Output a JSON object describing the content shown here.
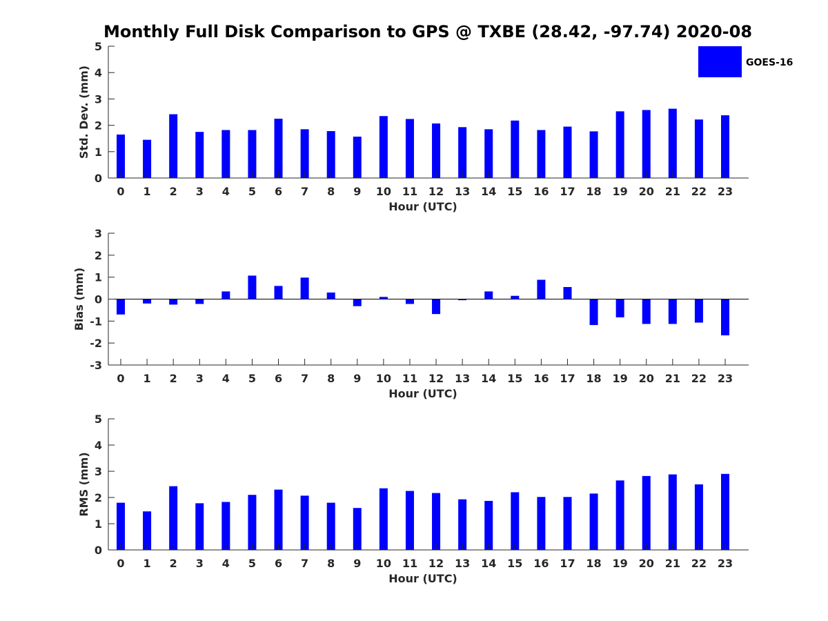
{
  "figure": {
    "title": "Monthly Full Disk Comparison to GPS @ TXBE (28.42, -97.74) 2020-08",
    "legend": {
      "label": "GOES-16",
      "color": "#0000ff",
      "placement": "top-right"
    }
  },
  "chart_data": [
    {
      "type": "bar",
      "xlabel": "Hour (UTC)",
      "ylabel": "Std. Dev. (mm)",
      "ylim": [
        0,
        5
      ],
      "yticks": [
        0,
        1,
        2,
        3,
        4,
        5
      ],
      "categories": [
        "0",
        "1",
        "2",
        "3",
        "4",
        "5",
        "6",
        "7",
        "8",
        "9",
        "10",
        "11",
        "12",
        "13",
        "14",
        "15",
        "16",
        "17",
        "18",
        "19",
        "20",
        "21",
        "22",
        "23"
      ],
      "series": [
        {
          "name": "GOES-16",
          "color": "#0000ff",
          "values": [
            1.65,
            1.45,
            2.42,
            1.75,
            1.82,
            1.82,
            2.25,
            1.85,
            1.78,
            1.57,
            2.35,
            2.24,
            2.07,
            1.93,
            1.85,
            2.18,
            1.82,
            1.95,
            1.77,
            2.53,
            2.58,
            2.63,
            2.22,
            2.38
          ]
        }
      ],
      "grid": false
    },
    {
      "type": "bar",
      "xlabel": "Hour (UTC)",
      "ylabel": "Bias (mm)",
      "ylim": [
        -3,
        3
      ],
      "yticks": [
        -3,
        -2,
        -1,
        0,
        1,
        2,
        3
      ],
      "categories": [
        "0",
        "1",
        "2",
        "3",
        "4",
        "5",
        "6",
        "7",
        "8",
        "9",
        "10",
        "11",
        "12",
        "13",
        "14",
        "15",
        "16",
        "17",
        "18",
        "19",
        "20",
        "21",
        "22",
        "23"
      ],
      "series": [
        {
          "name": "GOES-16",
          "color": "#0000ff",
          "values": [
            -0.7,
            -0.2,
            -0.25,
            -0.22,
            0.35,
            1.07,
            0.6,
            0.98,
            0.3,
            -0.32,
            0.1,
            -0.22,
            -0.68,
            -0.05,
            0.35,
            0.15,
            0.88,
            0.55,
            -1.18,
            -0.83,
            -1.13,
            -1.13,
            -1.07,
            -1.65
          ]
        }
      ],
      "zero_line": true,
      "grid": false
    },
    {
      "type": "bar",
      "xlabel": "Hour (UTC)",
      "ylabel": "RMS (mm)",
      "ylim": [
        0,
        5
      ],
      "yticks": [
        0,
        1,
        2,
        3,
        4,
        5
      ],
      "categories": [
        "0",
        "1",
        "2",
        "3",
        "4",
        "5",
        "6",
        "7",
        "8",
        "9",
        "10",
        "11",
        "12",
        "13",
        "14",
        "15",
        "16",
        "17",
        "18",
        "19",
        "20",
        "21",
        "22",
        "23"
      ],
      "series": [
        {
          "name": "GOES-16",
          "color": "#0000ff",
          "values": [
            1.8,
            1.47,
            2.43,
            1.78,
            1.83,
            2.1,
            2.3,
            2.07,
            1.8,
            1.6,
            2.35,
            2.25,
            2.17,
            1.93,
            1.87,
            2.2,
            2.02,
            2.02,
            2.15,
            2.65,
            2.82,
            2.88,
            2.5,
            2.9
          ]
        }
      ],
      "grid": false
    }
  ]
}
